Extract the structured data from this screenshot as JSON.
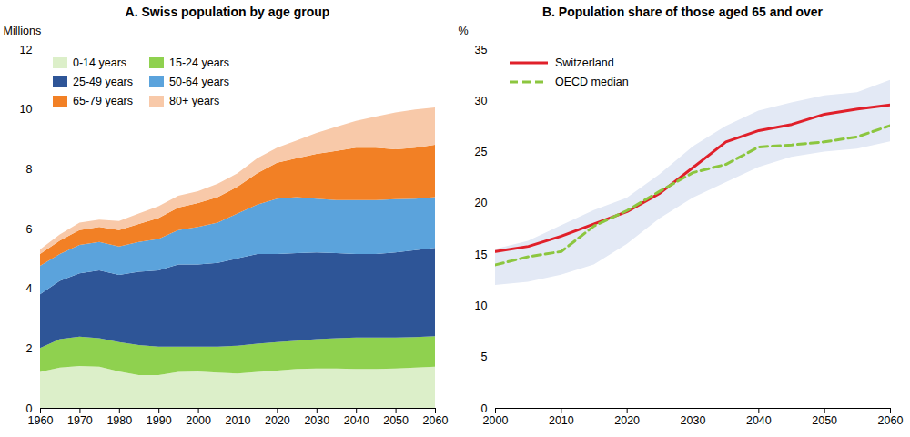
{
  "chart_data": [
    {
      "type": "area",
      "title": "A. Swiss population by age group",
      "y_label": "Millions",
      "stacked": true,
      "legend": "upper left",
      "x": [
        1960,
        1965,
        1970,
        1975,
        1980,
        1985,
        1990,
        1995,
        2000,
        2005,
        2010,
        2015,
        2020,
        2025,
        2030,
        2035,
        2040,
        2045,
        2050,
        2055,
        2060
      ],
      "xlim": [
        1960,
        2060
      ],
      "xticks": [
        1960,
        1970,
        1980,
        1990,
        2000,
        2010,
        2020,
        2030,
        2040,
        2050,
        2060
      ],
      "ylim": [
        0,
        12
      ],
      "yticks": [
        0,
        2,
        4,
        6,
        8,
        10,
        12
      ],
      "series": [
        {
          "name": "0-14 years",
          "color": "#dcefc9",
          "values": [
            1.2,
            1.35,
            1.4,
            1.38,
            1.22,
            1.1,
            1.1,
            1.2,
            1.22,
            1.18,
            1.15,
            1.2,
            1.25,
            1.3,
            1.32,
            1.32,
            1.3,
            1.3,
            1.32,
            1.35,
            1.38
          ]
        },
        {
          "name": "15-24 years",
          "color": "#8fd14f",
          "values": [
            0.8,
            0.95,
            0.98,
            0.95,
            0.98,
            1.0,
            0.95,
            0.85,
            0.83,
            0.87,
            0.93,
            0.95,
            0.95,
            0.95,
            0.98,
            1.01,
            1.05,
            1.05,
            1.03,
            1.02,
            1.02
          ]
        },
        {
          "name": "25-49 years",
          "color": "#2e5597",
          "values": [
            1.8,
            1.95,
            2.12,
            2.27,
            2.25,
            2.45,
            2.55,
            2.75,
            2.75,
            2.8,
            2.92,
            3.0,
            2.95,
            2.93,
            2.9,
            2.85,
            2.8,
            2.8,
            2.85,
            2.91,
            2.95
          ]
        },
        {
          "name": "50-64 years",
          "color": "#5ba3dc",
          "values": [
            0.95,
            0.9,
            0.95,
            0.95,
            0.95,
            1.0,
            1.05,
            1.15,
            1.25,
            1.35,
            1.5,
            1.65,
            1.85,
            1.87,
            1.8,
            1.77,
            1.8,
            1.8,
            1.78,
            1.72,
            1.7
          ]
        },
        {
          "name": "65-79 years",
          "color": "#f28025",
          "values": [
            0.4,
            0.45,
            0.5,
            0.5,
            0.55,
            0.6,
            0.7,
            0.75,
            0.8,
            0.85,
            0.9,
            1.05,
            1.2,
            1.3,
            1.5,
            1.65,
            1.75,
            1.75,
            1.67,
            1.7,
            1.75
          ]
        },
        {
          "name": "80+ years",
          "color": "#f8c9a9",
          "values": [
            0.15,
            0.2,
            0.25,
            0.25,
            0.3,
            0.35,
            0.4,
            0.4,
            0.4,
            0.45,
            0.45,
            0.5,
            0.5,
            0.6,
            0.7,
            0.8,
            0.9,
            1.05,
            1.23,
            1.28,
            1.25
          ]
        }
      ]
    },
    {
      "type": "line",
      "title": "B. Population share of those aged 65 and over",
      "y_label": "%",
      "legend": "upper left",
      "x": [
        2000,
        2005,
        2010,
        2015,
        2020,
        2025,
        2030,
        2035,
        2040,
        2045,
        2050,
        2055,
        2060
      ],
      "xlim": [
        2000,
        2060
      ],
      "xticks": [
        2000,
        2010,
        2020,
        2030,
        2040,
        2050,
        2060
      ],
      "ylim": [
        0,
        35
      ],
      "yticks": [
        0,
        5,
        10,
        15,
        20,
        25,
        30,
        35
      ],
      "band": {
        "color": "#e3e9f5",
        "lower": [
          12.0,
          12.3,
          13.0,
          14.0,
          16.0,
          18.5,
          20.5,
          22.0,
          23.5,
          24.5,
          25.0,
          25.3,
          26.0
        ],
        "upper": [
          15.5,
          16.3,
          17.8,
          19.3,
          20.5,
          22.8,
          25.5,
          27.5,
          29.0,
          29.8,
          30.5,
          30.8,
          32.0
        ]
      },
      "series": [
        {
          "name": "Switzerland",
          "color": "#e0202a",
          "line_style": "solid",
          "values": [
            15.3,
            15.8,
            16.8,
            18.0,
            19.2,
            21.0,
            23.5,
            26.0,
            27.1,
            27.7,
            28.7,
            29.2,
            29.6
          ]
        },
        {
          "name": "OECD median",
          "color": "#8cc63f",
          "line_style": "dashed",
          "values": [
            14.0,
            14.8,
            15.3,
            17.8,
            19.3,
            21.2,
            23.0,
            23.8,
            25.5,
            25.7,
            26.0,
            26.5,
            27.6
          ]
        }
      ]
    }
  ]
}
